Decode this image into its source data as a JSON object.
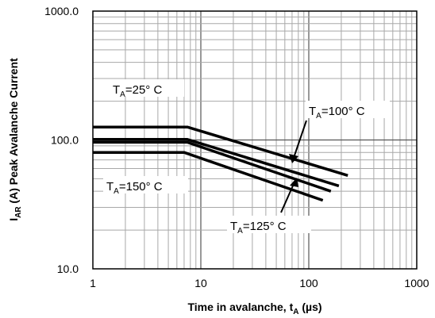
{
  "chart_data": {
    "type": "line",
    "xscale": "log",
    "yscale": "log",
    "xlim": [
      1,
      1000
    ],
    "ylim": [
      10,
      1000
    ],
    "grid": true,
    "xlabel": {
      "main": "Time in avalanche, t",
      "sub": "A",
      "unit": " (µs)"
    },
    "ylabel": {
      "main": "I",
      "sub": "AR",
      "rest": " (A) Peak Avalanche Current"
    },
    "x_tick_labels": [
      "1",
      "10",
      "100",
      "1000"
    ],
    "y_tick_labels": [
      "10.0",
      "100.0",
      "1000.0"
    ],
    "series": [
      {
        "name": "TA=25° C",
        "x": [
          1,
          7.5,
          230
        ],
        "y": [
          126,
          126,
          53
        ]
      },
      {
        "name": "TA=100° C",
        "x": [
          1,
          7.5,
          190
        ],
        "y": [
          101,
          101,
          44
        ]
      },
      {
        "name": "TA=125° C",
        "x": [
          1,
          7.5,
          160
        ],
        "y": [
          96,
          96,
          40
        ]
      },
      {
        "name": "TA=150° C",
        "x": [
          1,
          7.0,
          135
        ],
        "y": [
          80,
          80,
          34
        ]
      }
    ],
    "annotations": [
      {
        "prefix": "T",
        "sub": "A",
        "text": "=25° C"
      },
      {
        "prefix": "T",
        "sub": "A",
        "text": "=100° C"
      },
      {
        "prefix": "T",
        "sub": "A",
        "text": "=150° C"
      },
      {
        "prefix": "T",
        "sub": "A",
        "text": "=125° C"
      }
    ]
  }
}
